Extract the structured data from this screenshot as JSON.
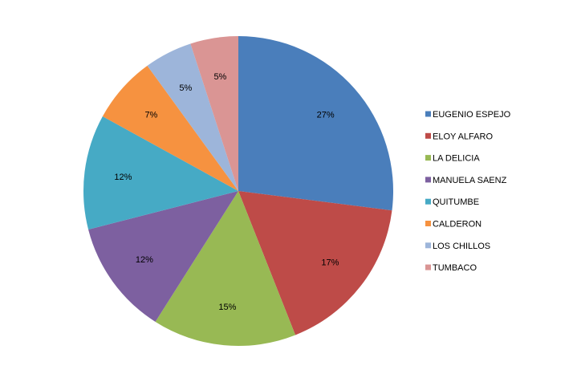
{
  "chart_data": {
    "type": "pie",
    "title": "",
    "legend_position": "right",
    "slices": [
      {
        "label": "EUGENIO ESPEJO",
        "value": 27,
        "display": "27%",
        "color": "#4A7EBB"
      },
      {
        "label": "ELOY ALFARO",
        "value": 17,
        "display": "17%",
        "color": "#BE4B48"
      },
      {
        "label": "LA DELICIA",
        "value": 15,
        "display": "15%",
        "color": "#98B954"
      },
      {
        "label": "MANUELA SAENZ",
        "value": 12,
        "display": "12%",
        "color": "#7D60A0"
      },
      {
        "label": "QUITUMBE",
        "value": 12,
        "display": "12%",
        "color": "#46AAC5"
      },
      {
        "label": "CALDERON",
        "value": 7,
        "display": "7%",
        "color": "#F69240"
      },
      {
        "label": "LOS CHILLOS",
        "value": 5,
        "display": "5%",
        "color": "#9DB5DA"
      },
      {
        "label": "TUMBACO",
        "value": 5,
        "display": "5%",
        "color": "#DA9594"
      }
    ]
  }
}
